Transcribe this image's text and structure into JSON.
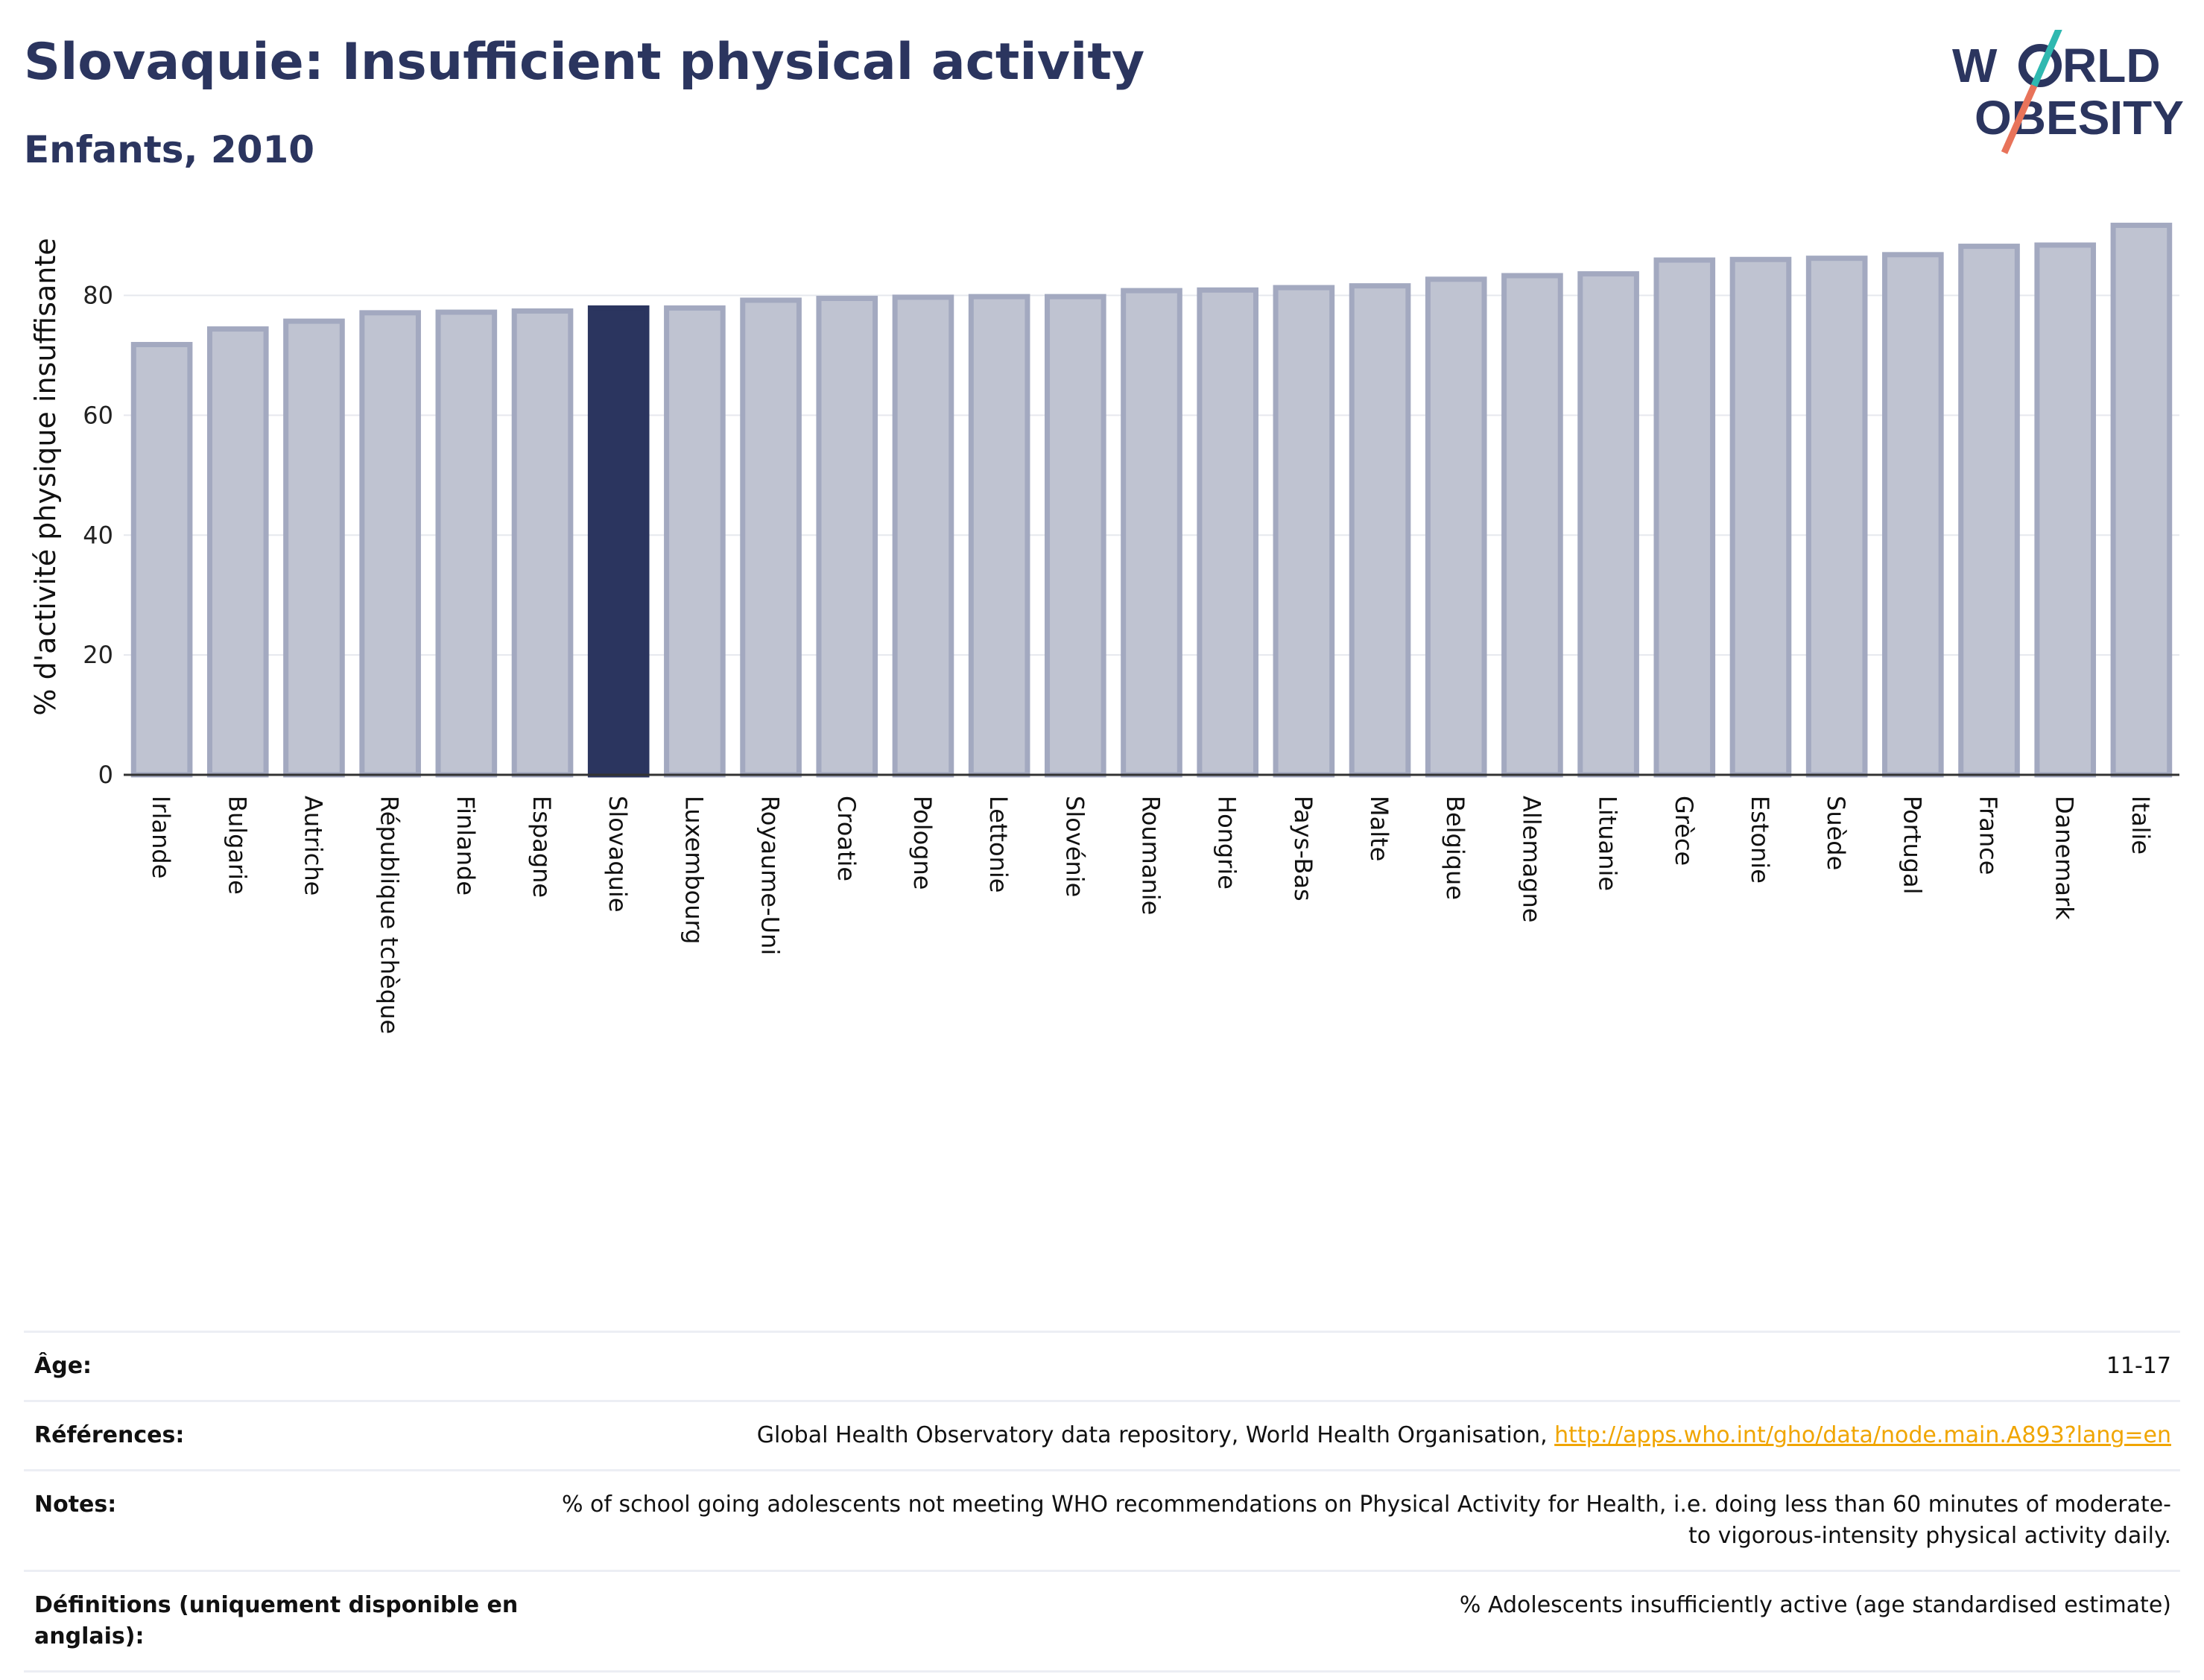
{
  "header": {
    "title": "Slovaquie: Insufficient physical activity",
    "subtitle": "Enfants, 2010"
  },
  "logo": {
    "line1": "W RLD",
    "line2": "OBESITY",
    "colors": {
      "text": "#2b355f",
      "slash_top": "#2fb8b0",
      "slash_bottom": "#e8735a"
    }
  },
  "chart_data": {
    "type": "bar",
    "title": "",
    "xlabel": "",
    "ylabel": "% d'activité physique insuffisante",
    "ylim": [
      0,
      92
    ],
    "yticks": [
      0,
      20,
      40,
      60,
      80
    ],
    "grid": true,
    "categories": [
      "Irlande",
      "Bulgarie",
      "Autriche",
      "République tchèque",
      "Finlande",
      "Espagne",
      "Slovaquie",
      "Luxembourg",
      "Royaume-Uni",
      "Croatie",
      "Pologne",
      "Lettonie",
      "Slovénie",
      "Roumanie",
      "Hongrie",
      "Pays-Bas",
      "Malte",
      "Belgique",
      "Allemagne",
      "Lituanie",
      "Grèce",
      "Estonie",
      "Suède",
      "Portugal",
      "France",
      "Danemark",
      "Italie"
    ],
    "values": [
      71.8,
      74.4,
      75.7,
      77.1,
      77.2,
      77.4,
      77.9,
      77.9,
      79.2,
      79.5,
      79.7,
      79.8,
      79.8,
      80.8,
      80.9,
      81.3,
      81.6,
      82.7,
      83.3,
      83.6,
      85.9,
      86.0,
      86.2,
      86.8,
      88.2,
      88.4,
      91.7
    ],
    "highlight": "Slovaquie",
    "colors": {
      "bar": "#bfc3d1",
      "bar_edge": "#a3a9c0",
      "highlight": "#2b355f"
    }
  },
  "meta": [
    {
      "label": "Âge:",
      "value": "11-17"
    },
    {
      "label": "Références:",
      "value": "Global Health Observatory data repository, World Health Organisation, ",
      "link": "http://apps.who.int/gho/data/node.main.A893?lang=en"
    },
    {
      "label": "Notes:",
      "value": "% of school going adolescents not meeting WHO recommendations on Physical Activity for Health, i.e. doing less than 60 minutes of moderate- to vigorous-intensity physical activity daily."
    },
    {
      "label": "Définitions (uniquement disponible en anglais):",
      "value": "% Adolescents insufficiently active (age standardised estimate)"
    }
  ]
}
